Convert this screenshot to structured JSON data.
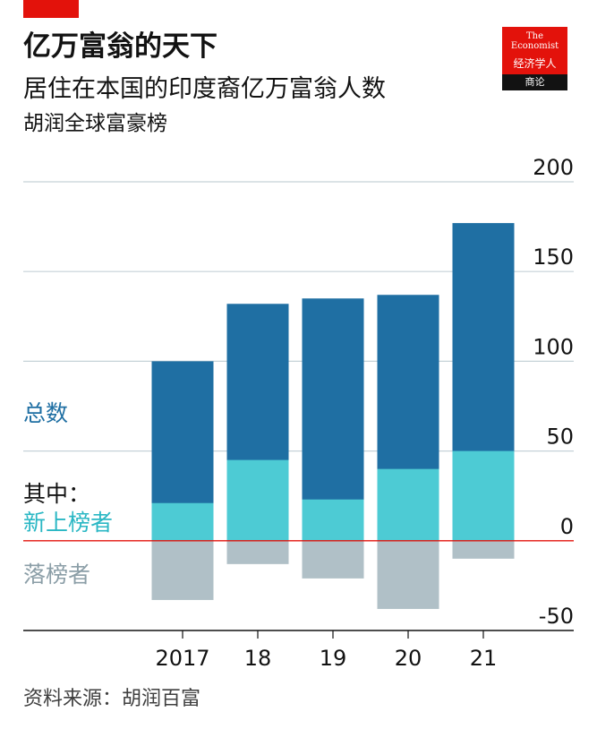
{
  "header": {
    "title": "亿万富翁的天下",
    "subtitle": "居住在本国的印度裔亿万富翁人数",
    "source_label": "胡润全球富豪榜"
  },
  "logo": {
    "line1": "The",
    "line2": "Economist",
    "line3": "经济学人",
    "band": "商论"
  },
  "legend": {
    "total": "总数",
    "of_which": "其中：",
    "new_entrants": "新上榜者",
    "dropouts": "落榜者"
  },
  "footer": {
    "source": "资料来源：胡润百富"
  },
  "colors": {
    "total": "#1f6fa3",
    "new": "#4dcbd4",
    "dropouts": "#b0c0c7",
    "zero_line": "#e3120b",
    "grid": "#c5d2d8",
    "axis": "#121212"
  },
  "chart_data": {
    "type": "bar",
    "categories": [
      "2017",
      "18",
      "19",
      "20",
      "21"
    ],
    "series": [
      {
        "name": "总数",
        "values": [
          100,
          132,
          135,
          137,
          177
        ]
      },
      {
        "name": "新上榜者",
        "values": [
          21,
          45,
          23,
          40,
          50
        ]
      },
      {
        "name": "落榜者",
        "values": [
          -33,
          -13,
          -21,
          -38,
          -10
        ]
      }
    ],
    "ylim": [
      -50,
      200
    ],
    "yticks": [
      -50,
      0,
      50,
      100,
      150,
      200
    ],
    "ytick_labels": [
      "-50",
      "0",
      "50",
      "100",
      "150",
      "200"
    ],
    "y_axis_side": "right",
    "grid": true
  }
}
